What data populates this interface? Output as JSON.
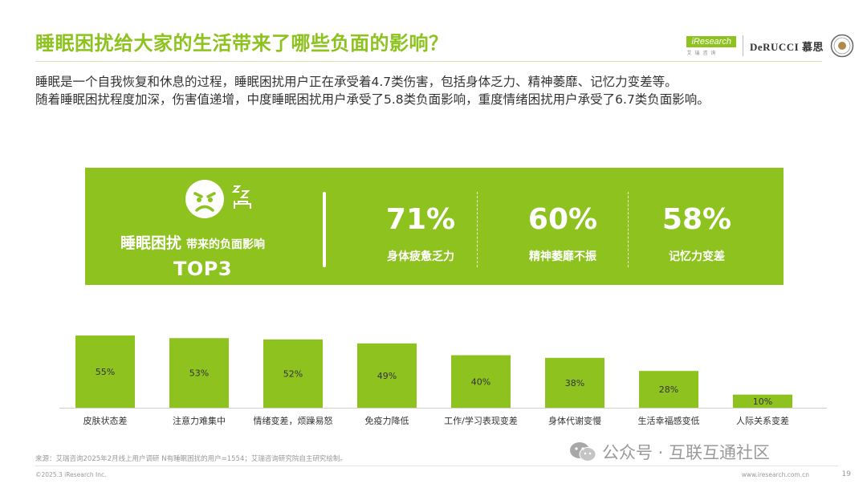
{
  "title": "睡眠困扰给大家的生活带来了哪些负面的影响？",
  "intro": [
    "睡眠是一个自我恢复和休息的过程，睡眠困扰用户正在承受着4.7类伤害，包括身体乏力、精神萎靡、记忆力变差等。",
    "随着睡眠困扰程度加深，伤害值递增，中度睡眠困扰用户承受了5.8类负面影响，重度情绪困扰用户承受了6.7类负面影响。"
  ],
  "logos": {
    "iresearch": "iResearch",
    "iresearch_sub": "艾瑞咨询",
    "derucci": "DeRUCCI 慕思"
  },
  "panel": {
    "lead": "睡眠困扰",
    "lead_small": "带来的负面影响",
    "top3": "TOP3",
    "stats": [
      {
        "pct": "71%",
        "label": "身体疲惫乏力"
      },
      {
        "pct": "60%",
        "label": "精神萎靡不振"
      },
      {
        "pct": "58%",
        "label": "记忆力变差"
      }
    ]
  },
  "chart_data": {
    "type": "bar",
    "categories": [
      "皮肤状态差",
      "注意力难集中",
      "情绪变差，烦躁易怒",
      "免疫力降低",
      "工作/学习表现变差",
      "身体代谢变慢",
      "生活幸福感变低",
      "人际关系变差"
    ],
    "values": [
      55,
      53,
      52,
      49,
      40,
      38,
      28,
      10
    ],
    "value_labels": [
      "55%",
      "53%",
      "52%",
      "49%",
      "40%",
      "38%",
      "28%",
      "10%"
    ],
    "unit": "%",
    "ylim": [
      0,
      55
    ],
    "bar_color": "#8dc21f",
    "grid": false,
    "legend": "none"
  },
  "footer": {
    "source": "来源：艾瑞咨询2025年2月线上用户调研 N有睡眠困扰的用户=1554；艾瑞咨询研究院自主研究绘制。",
    "copyright": "©2025.3 iResearch Inc.",
    "website": "www.iresearch.com.cn",
    "page": "19"
  },
  "watermark": "公众号 · 互联互通社区",
  "colors": {
    "accent": "#8dc21f",
    "text": "#333333",
    "muted": "#999999"
  },
  "icons": [
    "sad-face-icon",
    "sleep-zzz-icon",
    "wechat-icon",
    "seal-icon"
  ]
}
